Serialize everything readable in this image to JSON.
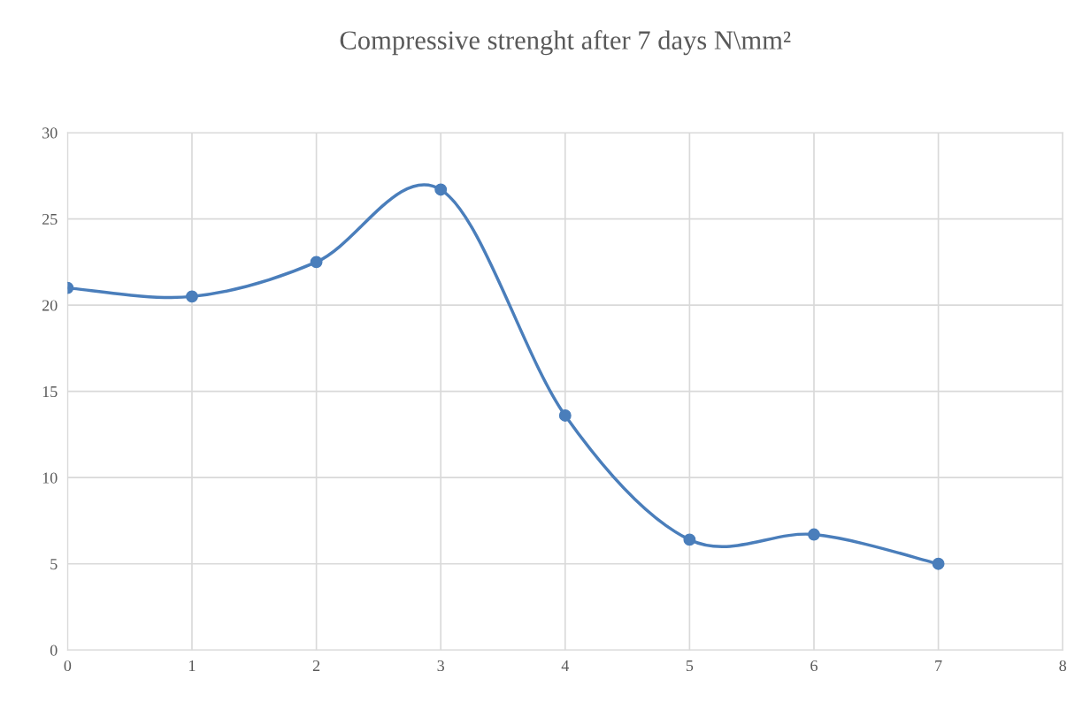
{
  "chart_data": {
    "type": "line",
    "title": "Compressive strenght after 7 days N\\mm²",
    "x": [
      0,
      1,
      2,
      3,
      4,
      5,
      6,
      7
    ],
    "series": [
      {
        "color": "#4a7ebb",
        "values": [
          21.0,
          20.5,
          22.5,
          26.7,
          13.6,
          6.4,
          6.7,
          5.0
        ]
      }
    ],
    "xlim": [
      0,
      8
    ],
    "xticks": [
      0,
      1,
      2,
      3,
      4,
      5,
      6,
      7,
      8
    ],
    "ylim": [
      0,
      30
    ],
    "yticks": [
      0,
      5,
      10,
      15,
      20,
      25,
      30
    ],
    "grid": true,
    "marker": "circle",
    "line_style": "solid"
  }
}
